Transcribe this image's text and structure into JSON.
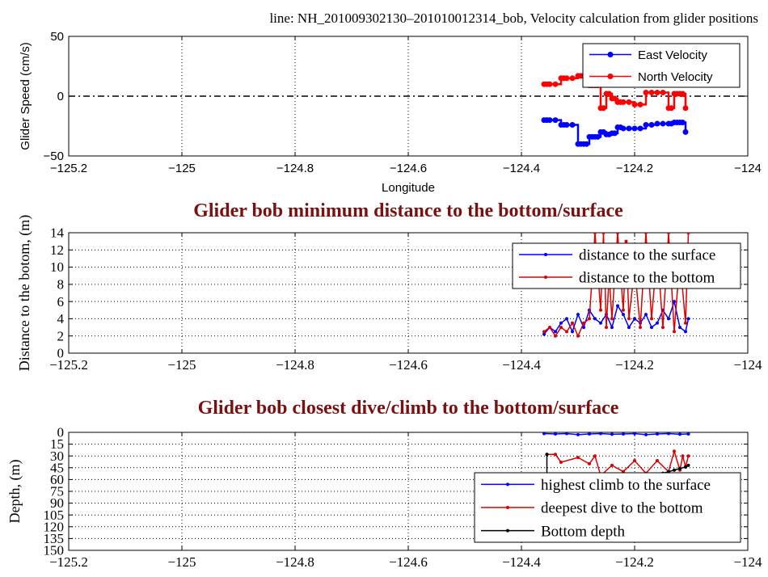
{
  "chart_data": [
    {
      "type": "line",
      "title": "line: NH_201009302130–201010012314_bob, Velocity calculation from glider positions",
      "xlabel": "Longitude",
      "ylabel": "Glider Speed (cm/s)",
      "xlim": [
        -125.2,
        -124.0
      ],
      "ylim": [
        -50,
        50
      ],
      "xticks": [
        -125.2,
        -125.0,
        -124.8,
        -124.6,
        -124.4,
        -124.2,
        -124.0
      ],
      "xtick_labels": [
        "−125.2",
        "−125",
        "−124.8",
        "−124.6",
        "−124.4",
        "−124.2",
        "−124"
      ],
      "yticks": [
        -50,
        0,
        50
      ],
      "ytick_labels": [
        "−50",
        "0",
        "50"
      ],
      "grid": "vertical dotted",
      "reference_line": 0,
      "legend": "top-right",
      "series": [
        {
          "name": "East Velocity",
          "color": "#0000ff",
          "x": [
            -124.36,
            -124.35,
            -124.33,
            -124.32,
            -124.3,
            -124.29,
            -124.28,
            -124.27,
            -124.26,
            -124.25,
            -124.24,
            -124.23,
            -124.22,
            -124.2,
            -124.18,
            -124.16,
            -124.14,
            -124.13,
            -124.12,
            -124.11
          ],
          "y": [
            -20,
            -20,
            -24,
            -24,
            -40,
            -40,
            -34,
            -34,
            -30,
            -32,
            -31,
            -26,
            -27,
            -27,
            -24,
            -23,
            -23,
            -22,
            -22,
            -30
          ]
        },
        {
          "name": "North Velocity",
          "color": "#ff0000",
          "x": [
            -124.36,
            -124.35,
            -124.33,
            -124.32,
            -124.3,
            -124.29,
            -124.28,
            -124.27,
            -124.26,
            -124.25,
            -124.24,
            -124.23,
            -124.22,
            -124.2,
            -124.18,
            -124.16,
            -124.14,
            -124.13,
            -124.12,
            -124.11
          ],
          "y": [
            10,
            10,
            15,
            15,
            17,
            17,
            9,
            9,
            -10,
            2,
            -2,
            -5,
            -5,
            -7,
            3,
            3,
            -10,
            2,
            2,
            -10
          ]
        }
      ]
    },
    {
      "type": "line",
      "title": "Glider bob minimum distance to the bottom/surface",
      "xlabel": "",
      "ylabel": "Distance to the botom, (m)",
      "xlim": [
        -125.2,
        -124.0
      ],
      "ylim": [
        0,
        14
      ],
      "xticks": [
        -125.2,
        -125.0,
        -124.8,
        -124.6,
        -124.4,
        -124.2,
        -124.0
      ],
      "xtick_labels": [
        "−125.2",
        "−125",
        "−124.8",
        "−124.6",
        "−124.4",
        "−124.2",
        "−124"
      ],
      "yticks": [
        0,
        2,
        4,
        6,
        8,
        10,
        12,
        14
      ],
      "ytick_labels": [
        "0",
        "2",
        "4",
        "6",
        "8",
        "10",
        "12",
        "14"
      ],
      "grid": "dotted",
      "legend": "top-right",
      "series": [
        {
          "name": "distance to the surface",
          "color": "#0000ff",
          "x": [
            -124.36,
            -124.35,
            -124.34,
            -124.33,
            -124.32,
            -124.31,
            -124.3,
            -124.29,
            -124.28,
            -124.27,
            -124.26,
            -124.25,
            -124.24,
            -124.23,
            -124.22,
            -124.21,
            -124.2,
            -124.19,
            -124.18,
            -124.17,
            -124.16,
            -124.15,
            -124.14,
            -124.13,
            -124.12,
            -124.11,
            -124.105
          ],
          "y": [
            2.2,
            3.0,
            2.5,
            3.5,
            4.0,
            2.5,
            4.5,
            3.0,
            5.0,
            4.0,
            3.5,
            4.5,
            3.0,
            5.5,
            4.5,
            3.0,
            4.0,
            3.5,
            4.5,
            3.0,
            3.5,
            5.0,
            4.0,
            6.0,
            3.0,
            2.5,
            4.0
          ]
        },
        {
          "name": "distance to the bottom",
          "color": "#dd0000",
          "x": [
            -124.36,
            -124.35,
            -124.34,
            -124.33,
            -124.32,
            -124.31,
            -124.3,
            -124.29,
            -124.28,
            -124.27,
            -124.26,
            -124.255,
            -124.25,
            -124.245,
            -124.24,
            -124.23,
            -124.22,
            -124.215,
            -124.21,
            -124.2,
            -124.19,
            -124.18,
            -124.17,
            -124.16,
            -124.15,
            -124.14,
            -124.13,
            -124.12,
            -124.11,
            -124.105
          ],
          "y": [
            2.5,
            3.0,
            2.0,
            3.0,
            2.5,
            3.5,
            2.0,
            3.5,
            4.0,
            14.0,
            5.0,
            14.0,
            3.0,
            9.0,
            4.0,
            14.0,
            5.0,
            13.0,
            4.0,
            10.0,
            3.0,
            14.0,
            4.0,
            12.0,
            3.0,
            14.0,
            2.5,
            11.0,
            3.5,
            14.0
          ]
        }
      ]
    },
    {
      "type": "line",
      "title": "Glider bob closest dive/climb to the bottom/surface",
      "xlabel": "",
      "ylabel": "Depth, (m)",
      "xlim": [
        -125.2,
        -124.0
      ],
      "ylim": [
        150,
        0
      ],
      "y_reversed": true,
      "xticks": [
        -125.2,
        -125.0,
        -124.8,
        -124.6,
        -124.4,
        -124.2,
        -124.0
      ],
      "xtick_labels": [
        "−125.2",
        "−125",
        "−124.8",
        "−124.6",
        "−124.4",
        "−124.2",
        "−124"
      ],
      "yticks": [
        0,
        15,
        30,
        45,
        60,
        75,
        90,
        105,
        120,
        135,
        150
      ],
      "ytick_labels": [
        "0",
        "15",
        "30",
        "45",
        "60",
        "75",
        "90",
        "105",
        "120",
        "135",
        "150"
      ],
      "grid": "dotted",
      "legend": "bottom-right",
      "series": [
        {
          "name": "highest climb to the surface",
          "color": "#0000ff",
          "x": [
            -124.36,
            -124.34,
            -124.32,
            -124.3,
            -124.28,
            -124.26,
            -124.24,
            -124.22,
            -124.2,
            -124.18,
            -124.16,
            -124.14,
            -124.12,
            -124.105
          ],
          "y": [
            1.5,
            2.0,
            1.5,
            3.0,
            2.0,
            1.5,
            2.5,
            2.0,
            1.5,
            3.0,
            2.0,
            1.5,
            2.5,
            2.0
          ]
        },
        {
          "name": "deepest dive to the bottom",
          "color": "#dd0000",
          "x": [
            -124.355,
            -124.34,
            -124.33,
            -124.3,
            -124.28,
            -124.27,
            -124.26,
            -124.24,
            -124.22,
            -124.2,
            -124.18,
            -124.16,
            -124.14,
            -124.13,
            -124.12,
            -124.115,
            -124.11,
            -124.105
          ],
          "y": [
            28.0,
            28.0,
            38.0,
            32.0,
            40.0,
            30.0,
            55.0,
            42.0,
            50.0,
            36.0,
            52.0,
            36.0,
            50.0,
            24.0,
            48.0,
            30.0,
            44.0,
            30.0
          ]
        },
        {
          "name": "Bottom depth",
          "color": "#000000",
          "x": [
            -124.355,
            -124.355,
            -124.15,
            -124.14,
            -124.13,
            -124.12,
            -124.11,
            -124.105
          ],
          "y": [
            28.0,
            58.0,
            52.0,
            50.0,
            48.0,
            46.0,
            44.0,
            42.0
          ]
        }
      ]
    }
  ]
}
